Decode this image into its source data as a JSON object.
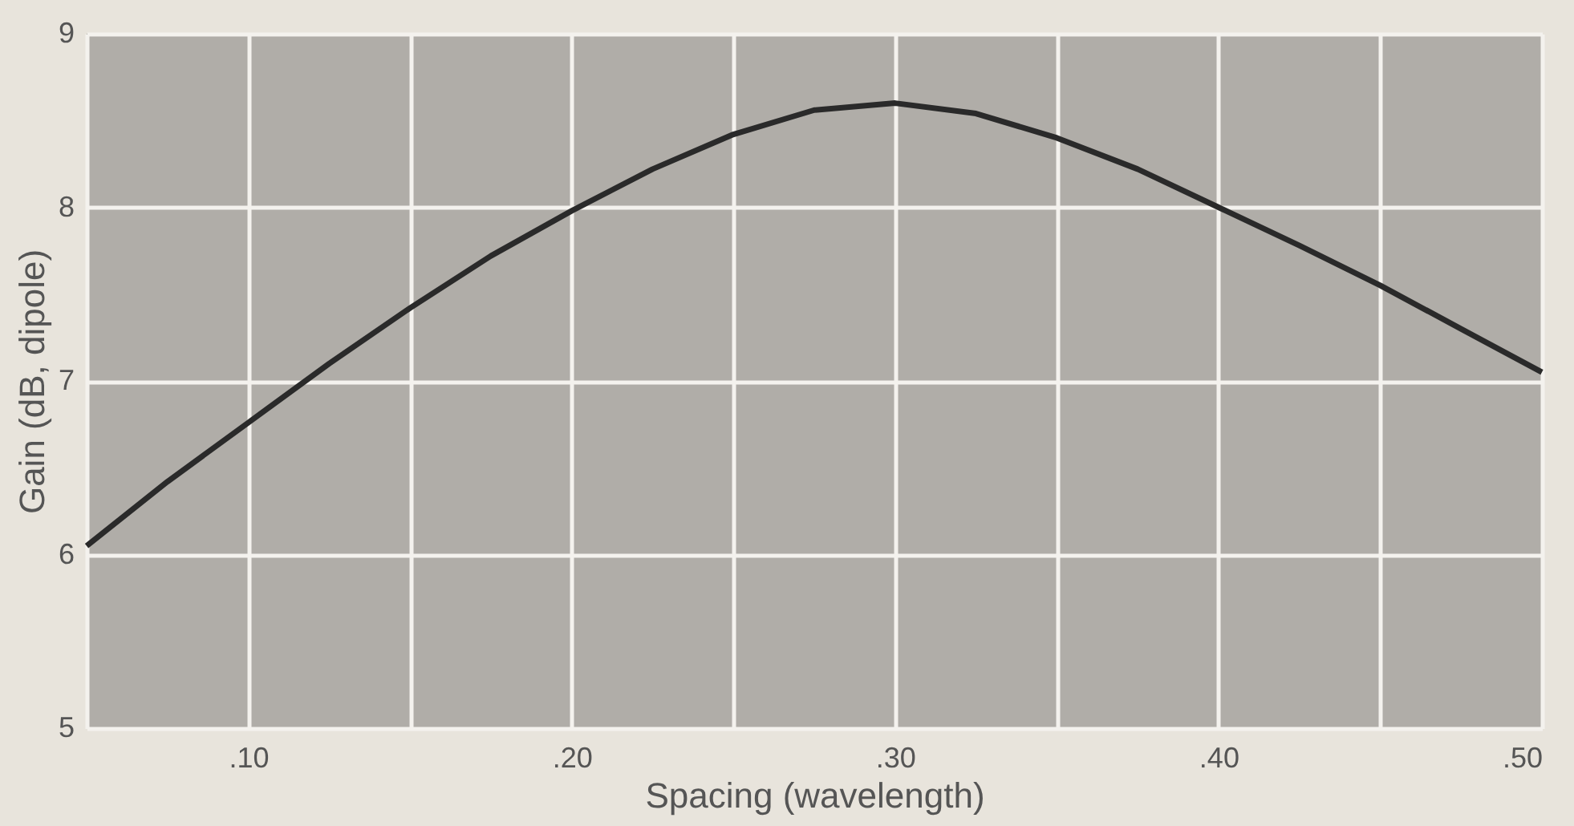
{
  "chart_data": {
    "type": "line",
    "xlabel": "Spacing (wavelength)",
    "ylabel": "Gain (dB, dipole)",
    "x": [
      0.05,
      0.075,
      0.1,
      0.125,
      0.15,
      0.175,
      0.2,
      0.225,
      0.25,
      0.275,
      0.3,
      0.325,
      0.35,
      0.375,
      0.4,
      0.425,
      0.45,
      0.475,
      0.5
    ],
    "series": [
      {
        "color": "#2a2a2a",
        "values": [
          6.05,
          6.42,
          6.76,
          7.1,
          7.42,
          7.72,
          7.98,
          8.22,
          8.42,
          8.56,
          8.6,
          8.54,
          8.4,
          8.22,
          8.0,
          7.78,
          7.55,
          7.3,
          7.05
        ]
      }
    ],
    "xlim": [
      0.05,
      0.5
    ],
    "xticks": [
      {
        "value": 0.05,
        "label": null
      },
      {
        "value": 0.1,
        "label": ".10"
      },
      {
        "value": 0.15,
        "label": null
      },
      {
        "value": 0.2,
        "label": ".20"
      },
      {
        "value": 0.25,
        "label": null
      },
      {
        "value": 0.3,
        "label": ".30"
      },
      {
        "value": 0.35,
        "label": null
      },
      {
        "value": 0.4,
        "label": ".40"
      },
      {
        "value": 0.45,
        "label": null
      },
      {
        "value": 0.5,
        "label": ".50"
      }
    ],
    "ylim": [
      5,
      9
    ],
    "yticks": [
      5,
      6,
      7,
      8,
      9
    ],
    "grid": true,
    "marker": "none",
    "line_style": "solid"
  }
}
